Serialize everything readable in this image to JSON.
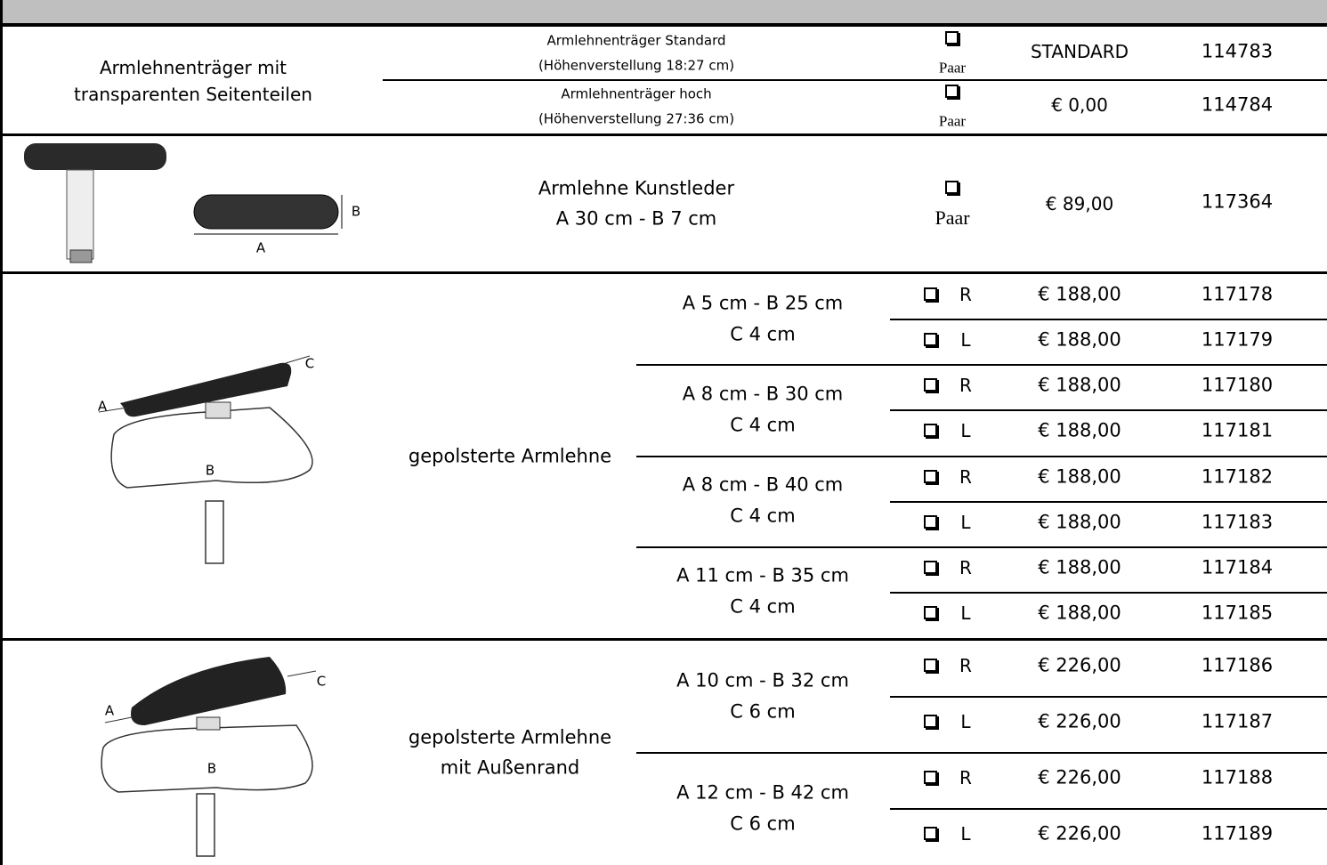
{
  "sections": [
    {
      "label": [
        "Armlehnenträger mit",
        "transparenten Seitenteilen"
      ],
      "rows": [
        {
          "description": [
            "Armlehnenträger Standard",
            "(Höhenverstellung 18:27 cm)"
          ],
          "unit": "Paar",
          "price": "STANDARD",
          "code": "114783"
        },
        {
          "description": [
            "Armlehnenträger hoch",
            "(Höhenverstellung 27:36 cm)"
          ],
          "unit": "Paar",
          "price": "€ 0,00",
          "code": "114784"
        }
      ]
    },
    {
      "figure_labels": {
        "a": "A",
        "b": "B"
      },
      "rows": [
        {
          "description": [
            "Armlehne Kunstleder",
            "A  30 cm - B 7 cm"
          ],
          "unit": "Paar",
          "price": "€ 89,00",
          "code": "117364"
        }
      ]
    },
    {
      "figure_labels": {
        "a": "A",
        "b": "B",
        "c": "C"
      },
      "label": [
        "gepolsterte Armlehne"
      ],
      "groups": [
        {
          "size": [
            "A 5 cm - B 25 cm",
            "C 4 cm"
          ],
          "rows": [
            {
              "side": "R",
              "price": "€ 188,00",
              "code": "117178"
            },
            {
              "side": "L",
              "price": "€ 188,00",
              "code": "117179"
            }
          ]
        },
        {
          "size": [
            "A 8 cm - B 30 cm",
            "C 4 cm"
          ],
          "rows": [
            {
              "side": "R",
              "price": "€ 188,00",
              "code": "117180"
            },
            {
              "side": "L",
              "price": "€ 188,00",
              "code": "117181"
            }
          ]
        },
        {
          "size": [
            "A 8 cm - B 40 cm",
            "C 4 cm"
          ],
          "rows": [
            {
              "side": "R",
              "price": "€ 188,00",
              "code": "117182"
            },
            {
              "side": "L",
              "price": "€ 188,00",
              "code": "117183"
            }
          ]
        },
        {
          "size": [
            "A 11 cm - B 35 cm",
            "C 4 cm"
          ],
          "rows": [
            {
              "side": "R",
              "price": "€ 188,00",
              "code": "117184"
            },
            {
              "side": "L",
              "price": "€ 188,00",
              "code": "117185"
            }
          ]
        }
      ]
    },
    {
      "figure_labels": {
        "a": "A",
        "b": "B",
        "c": "C"
      },
      "label": [
        "gepolsterte Armlehne",
        "mit Außenrand"
      ],
      "groups": [
        {
          "size": [
            "A 10 cm - B 32 cm",
            "C 6 cm"
          ],
          "rows": [
            {
              "side": "R",
              "price": "€ 226,00",
              "code": "117186"
            },
            {
              "side": "L",
              "price": "€ 226,00",
              "code": "117187"
            }
          ]
        },
        {
          "size": [
            "A 12 cm - B 42 cm",
            "C 6 cm"
          ],
          "rows": [
            {
              "side": "R",
              "price": "€ 226,00",
              "code": "117188"
            },
            {
              "side": "L",
              "price": "€ 226,00",
              "code": "117189"
            }
          ]
        }
      ]
    }
  ]
}
